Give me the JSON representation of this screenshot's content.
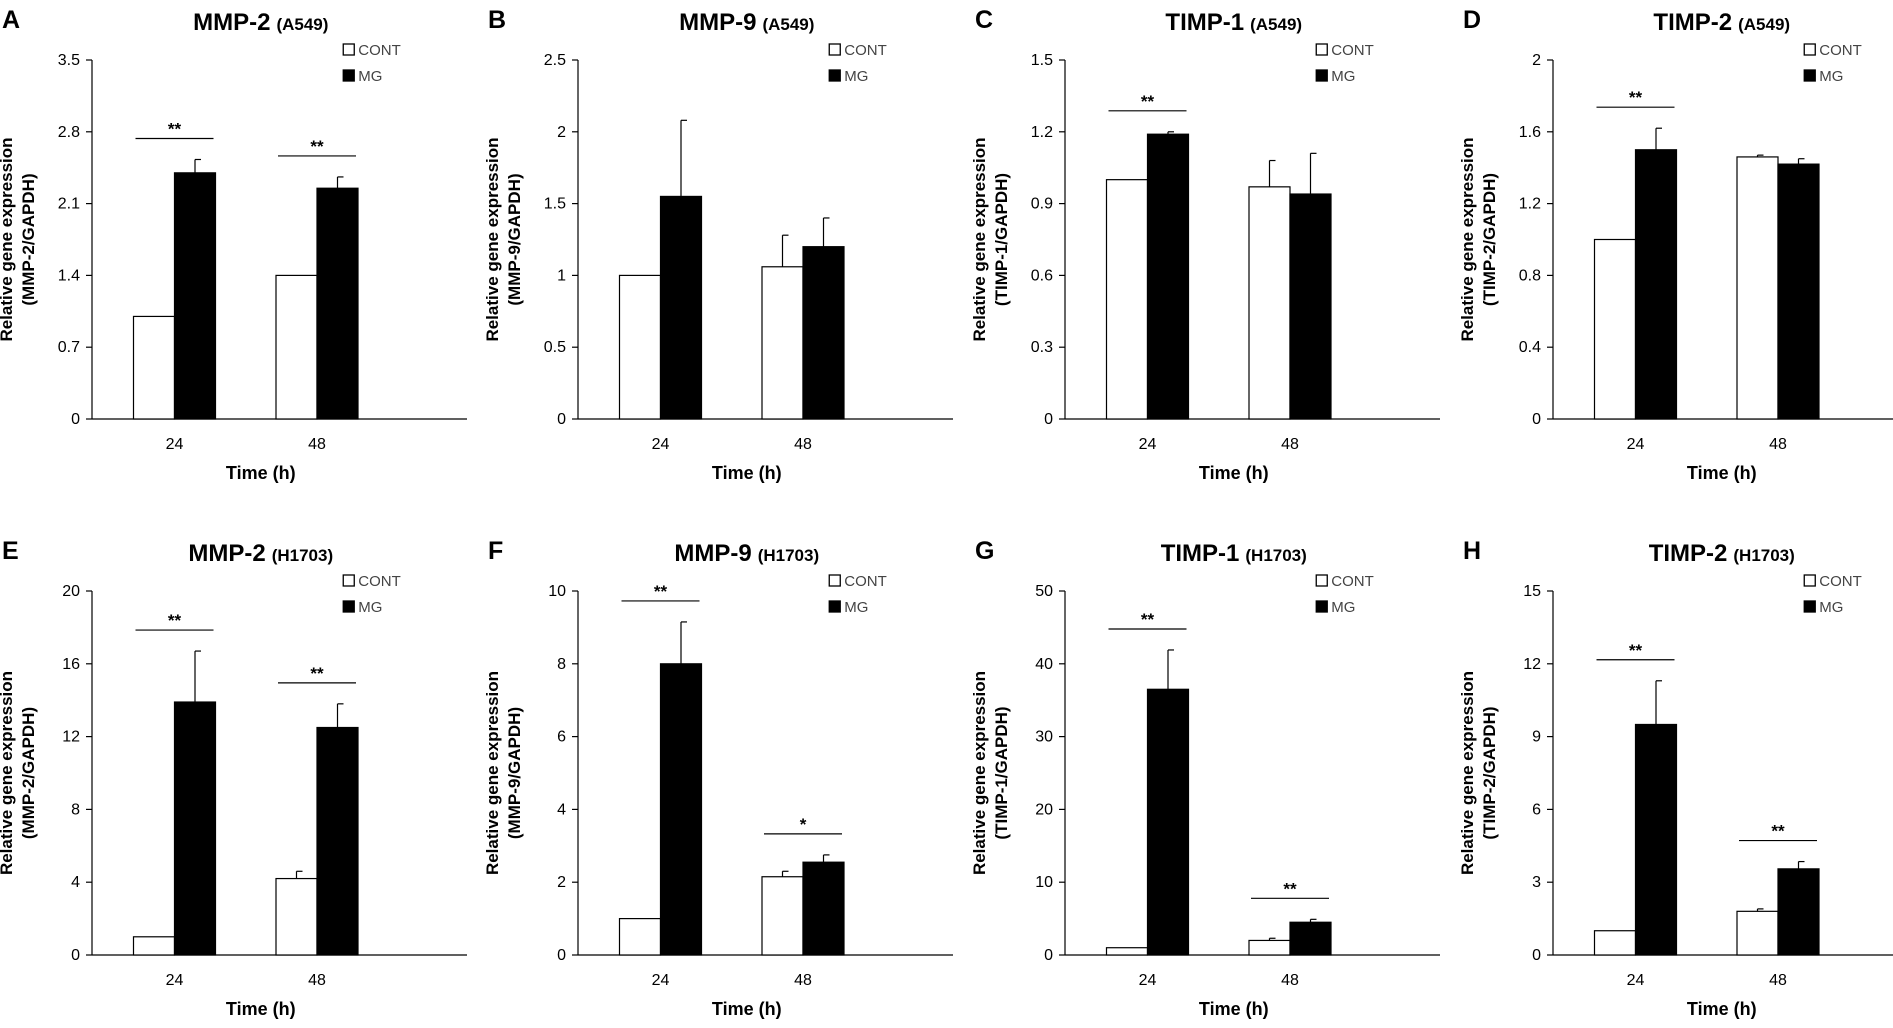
{
  "chart_data": [
    {
      "panel": "A",
      "title": "MMP-2",
      "cell_line": "(A549)",
      "type": "bar",
      "categories": [
        "24",
        "48"
      ],
      "series": [
        {
          "name": "CONT",
          "values": [
            1.0,
            1.4
          ],
          "errors": [
            0,
            0
          ]
        },
        {
          "name": "MG",
          "values": [
            2.4,
            2.25
          ],
          "errors": [
            0.13,
            0.11
          ]
        }
      ],
      "significance": [
        "**",
        "**"
      ],
      "ylim": [
        0,
        3.5
      ],
      "yticks": [
        "0",
        "0.7",
        "1.4",
        "2.1",
        "2.8",
        "3.5"
      ],
      "xlabel": "Time (h)",
      "ylabel_line1": "Relative  gene expression",
      "ylabel_line2": "(MMP-2/GAPDH)"
    },
    {
      "panel": "B",
      "title": "MMP-9",
      "cell_line": "(A549)",
      "type": "bar",
      "categories": [
        "24",
        "48"
      ],
      "series": [
        {
          "name": "CONT",
          "values": [
            1.0,
            1.06
          ],
          "errors": [
            0,
            0.22
          ]
        },
        {
          "name": "MG",
          "values": [
            1.55,
            1.2
          ],
          "errors": [
            0.53,
            0.2
          ]
        }
      ],
      "significance": [
        "",
        ""
      ],
      "ylim": [
        0,
        2.5
      ],
      "yticks": [
        "0",
        "0.5",
        "1",
        "1.5",
        "2",
        "2.5"
      ],
      "xlabel": "Time (h)",
      "ylabel_line1": "Relative  gene expression",
      "ylabel_line2": "(MMP-9/GAPDH)"
    },
    {
      "panel": "C",
      "title": "TIMP-1",
      "cell_line": "(A549)",
      "type": "bar",
      "categories": [
        "24",
        "48"
      ],
      "series": [
        {
          "name": "CONT",
          "values": [
            1.0,
            0.97
          ],
          "errors": [
            0,
            0.11
          ]
        },
        {
          "name": "MG",
          "values": [
            1.19,
            0.94
          ],
          "errors": [
            0.01,
            0.17
          ]
        }
      ],
      "significance": [
        "**",
        ""
      ],
      "ylim": [
        0,
        1.5
      ],
      "yticks": [
        "0",
        "0.3",
        "0.6",
        "0.9",
        "1.2",
        "1.5"
      ],
      "xlabel": "Time (h)",
      "ylabel_line1": "Relative  gene expression",
      "ylabel_line2": "(TIMP-1/GAPDH)"
    },
    {
      "panel": "D",
      "title": "TIMP-2",
      "cell_line": "(A549)",
      "type": "bar",
      "categories": [
        "24",
        "48"
      ],
      "series": [
        {
          "name": "CONT",
          "values": [
            1.0,
            1.46
          ],
          "errors": [
            0,
            0.01
          ]
        },
        {
          "name": "MG",
          "values": [
            1.5,
            1.42
          ],
          "errors": [
            0.12,
            0.03
          ]
        }
      ],
      "significance": [
        "**",
        ""
      ],
      "ylim": [
        0,
        2
      ],
      "yticks": [
        "0",
        "0.4",
        "0.8",
        "1.2",
        "1.6",
        "2"
      ],
      "xlabel": "Time (h)",
      "ylabel_line1": "Relative  gene expression",
      "ylabel_line2": "(TIMP-2/GAPDH)"
    },
    {
      "panel": "E",
      "title": "MMP-2",
      "cell_line": "(H1703)",
      "type": "bar",
      "categories": [
        "24",
        "48"
      ],
      "series": [
        {
          "name": "CONT",
          "values": [
            1.0,
            4.2
          ],
          "errors": [
            0,
            0.4
          ]
        },
        {
          "name": "MG",
          "values": [
            13.9,
            12.5
          ],
          "errors": [
            2.8,
            1.3
          ]
        }
      ],
      "significance": [
        "**",
        "**"
      ],
      "ylim": [
        0,
        20
      ],
      "yticks": [
        "0",
        "4",
        "8",
        "12",
        "16",
        "20"
      ],
      "xlabel": "Time (h)",
      "ylabel_line1": "Relative  gene expression",
      "ylabel_line2": "(MMP-2/GAPDH)"
    },
    {
      "panel": "F",
      "title": "MMP-9",
      "cell_line": "(H1703)",
      "type": "bar",
      "categories": [
        "24",
        "48"
      ],
      "series": [
        {
          "name": "CONT",
          "values": [
            1.0,
            2.15
          ],
          "errors": [
            0,
            0.15
          ]
        },
        {
          "name": "MG",
          "values": [
            8.0,
            2.55
          ],
          "errors": [
            1.15,
            0.2
          ]
        }
      ],
      "significance": [
        "**",
        "*"
      ],
      "ylim": [
        0,
        10
      ],
      "yticks": [
        "0",
        "2",
        "4",
        "6",
        "8",
        "10"
      ],
      "xlabel": "Time (h)",
      "ylabel_line1": "Relative  gene expression",
      "ylabel_line2": "(MMP-9/GAPDH)"
    },
    {
      "panel": "G",
      "title": "TIMP-1",
      "cell_line": "(H1703)",
      "type": "bar",
      "categories": [
        "24",
        "48"
      ],
      "series": [
        {
          "name": "CONT",
          "values": [
            1.0,
            2.0
          ],
          "errors": [
            0,
            0.3
          ]
        },
        {
          "name": "MG",
          "values": [
            36.5,
            4.5
          ],
          "errors": [
            5.4,
            0.4
          ]
        }
      ],
      "significance": [
        "**",
        "**"
      ],
      "ylim": [
        0,
        50
      ],
      "yticks": [
        "0",
        "10",
        "20",
        "30",
        "40",
        "50"
      ],
      "xlabel": "Time (h)",
      "ylabel_line1": "Relative  gene expression",
      "ylabel_line2": "(TIMP-1/GAPDH)"
    },
    {
      "panel": "H",
      "title": "TIMP-2",
      "cell_line": "(H1703)",
      "type": "bar",
      "categories": [
        "24",
        "48"
      ],
      "series": [
        {
          "name": "CONT",
          "values": [
            1.0,
            1.8
          ],
          "errors": [
            0,
            0.1
          ]
        },
        {
          "name": "MG",
          "values": [
            9.5,
            3.55
          ],
          "errors": [
            1.8,
            0.3
          ]
        }
      ],
      "significance": [
        "**",
        "**"
      ],
      "ylim": [
        0,
        15
      ],
      "yticks": [
        "0",
        "3",
        "6",
        "9",
        "12",
        "15"
      ],
      "xlabel": "Time (h)",
      "ylabel_line1": "Relative  gene expression",
      "ylabel_line2": "(TIMP-2/GAPDH)"
    }
  ]
}
